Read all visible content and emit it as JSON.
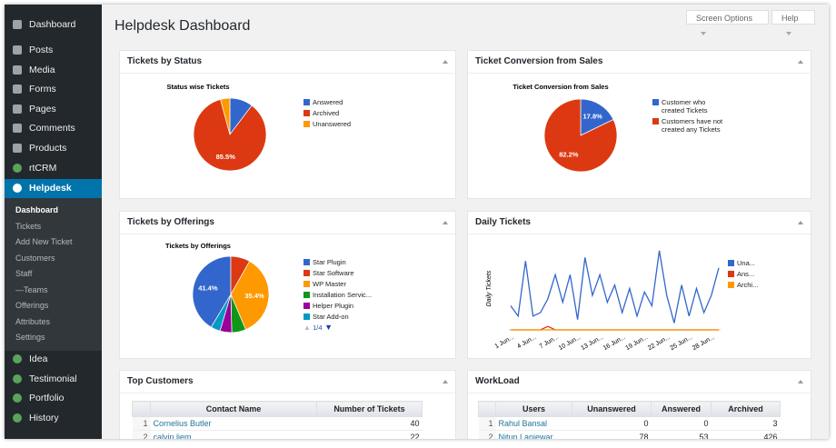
{
  "sidebar": {
    "menu": [
      "Dashboard",
      "Posts",
      "Media",
      "Forms",
      "Pages",
      "Comments",
      "Products",
      "rtCRM",
      "Helpdesk"
    ],
    "submenu": [
      "Dashboard",
      "Tickets",
      "Add New Ticket",
      "Customers",
      "Staff",
      "—Teams",
      "Offerings",
      "Attributes",
      "Settings"
    ],
    "menu_after": [
      "Idea",
      "Testimonial",
      "Portfolio",
      "History"
    ]
  },
  "header": {
    "title": "Helpdesk Dashboard",
    "buttons": [
      "Screen Options",
      "Help"
    ]
  },
  "panels": [
    {
      "heading": "Tickets by Status",
      "chart_data": {
        "type": "pie",
        "title": "Status wise Tickets",
        "categories": [
          "Answered",
          "Archived",
          "Unanswered"
        ],
        "values": [
          10.3,
          85.5,
          4.2
        ],
        "value_labels": [
          null,
          "85.5%",
          null
        ],
        "colors": [
          "#3366cc",
          "#dc3912",
          "#ff9900"
        ]
      }
    },
    {
      "heading": "Ticket Conversion from Sales",
      "chart_data": {
        "type": "pie",
        "title": "Ticket Conversion from Sales",
        "categories": [
          "Customer who created Tickets",
          "Customers have not created any Tickets"
        ],
        "values": [
          17.8,
          82.2
        ],
        "value_labels": [
          "17.8%",
          "82.2%"
        ],
        "colors": [
          "#3366cc",
          "#dc3912"
        ]
      }
    },
    {
      "heading": "Tickets by Offerings",
      "chart_data": {
        "type": "pie",
        "title": "Tickets by Offerings",
        "categories": [
          "Star Plugin",
          "Star Software",
          "WP Master",
          "Installation Servic...",
          "Helper Plugin",
          "Star Add-on"
        ],
        "values": [
          41.4,
          8.2,
          35.4,
          6,
          5,
          4
        ],
        "value_labels": [
          "41.4%",
          null,
          "35.4%",
          null,
          null,
          null
        ],
        "colors": [
          "#3366cc",
          "#dc3912",
          "#ff9900",
          "#109618",
          "#990099",
          "#0099c6"
        ],
        "pager": "1/4"
      }
    },
    {
      "heading": "Daily Tickets",
      "chart_data": {
        "type": "line",
        "y_label": "Daily Tickets",
        "categories": [
          "1 Jun...",
          null,
          null,
          "4 Jun...",
          null,
          null,
          "7 Jun...",
          null,
          null,
          "10 Jun...",
          null,
          null,
          "13 Jun...",
          null,
          null,
          "16 Jun...",
          null,
          null,
          "19 Jun...",
          null,
          null,
          "22 Jun...",
          null,
          null,
          "25 Jun...",
          null,
          null,
          "28 Jun...",
          null
        ],
        "series": [
          {
            "name": "Una...",
            "color": "#3366cc",
            "values": [
              7,
              4,
              20,
              4,
              5,
              9,
              16,
              8,
              16,
              3,
              21,
              10,
              16,
              8,
              13,
              5,
              12,
              4,
              11,
              7,
              23,
              10,
              2,
              13,
              4,
              12,
              5,
              10,
              18
            ]
          },
          {
            "name": "Ans...",
            "color": "#dc3912",
            "values": [
              0,
              0,
              0,
              0,
              0,
              1,
              0,
              0,
              0,
              0,
              0,
              0,
              0,
              0,
              0,
              0,
              0,
              0,
              0,
              0,
              0,
              0,
              0,
              0,
              0,
              0,
              0,
              0,
              0
            ]
          },
          {
            "name": "Archi...",
            "color": "#ff9900",
            "values": [
              0,
              0,
              0,
              0,
              0,
              0,
              0,
              0,
              0,
              0,
              0,
              0,
              0,
              0,
              0,
              0,
              0,
              0,
              0,
              0,
              0,
              0,
              0,
              0,
              0,
              0,
              0,
              0,
              0
            ]
          }
        ],
        "ylim": [
          0,
          24
        ]
      }
    },
    {
      "heading": "Top Customers",
      "table": {
        "header": [
          "Contact Name",
          "Number of Tickets"
        ],
        "rows": [
          [
            "1",
            "Cornelius Butler",
            "40"
          ],
          [
            "2",
            "calvin liem",
            "22"
          ]
        ]
      }
    },
    {
      "heading": "WorkLoad",
      "table": {
        "header": [
          "Users",
          "Unanswered",
          "Answered",
          "Archived"
        ],
        "rows": [
          [
            "1",
            "Rahul Bansal",
            "0",
            "0",
            "3"
          ],
          [
            "2",
            "Nitun Lanjewar",
            "78",
            "53",
            "426"
          ]
        ]
      }
    }
  ]
}
